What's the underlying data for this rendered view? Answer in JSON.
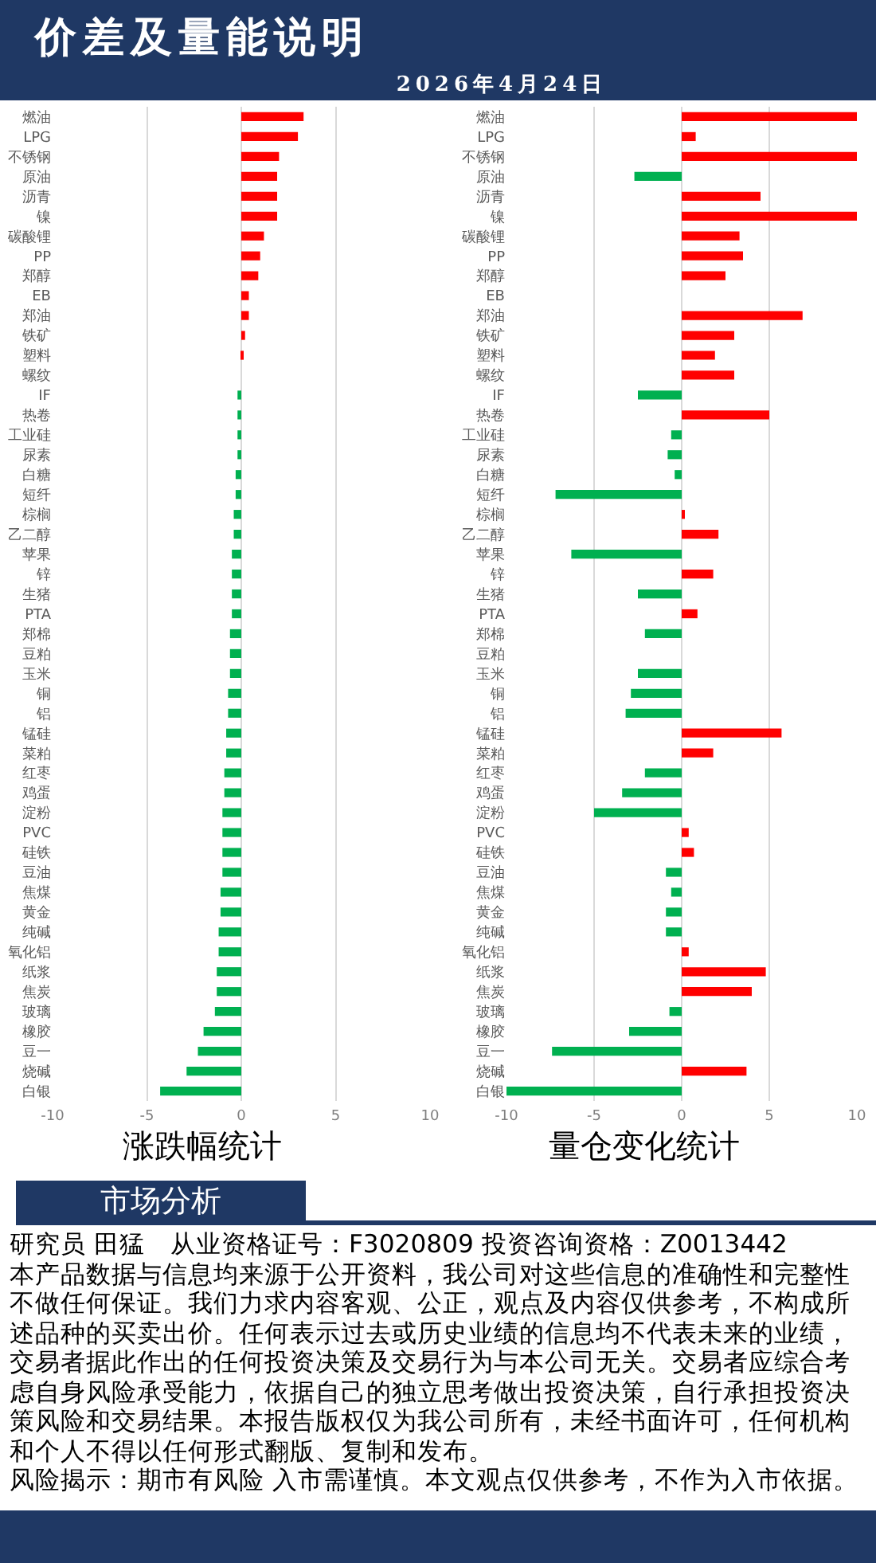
{
  "chart_data": [
    {
      "type": "bar",
      "orientation": "horizontal",
      "title": "涨跌幅统计",
      "annotations": [
        "价差及量能说明",
        "2026年4月24日"
      ],
      "categories": [
        "燃油",
        "LPG",
        "不锈钢",
        "原油",
        "沥青",
        "镍",
        "碳酸锂",
        "PP",
        "郑醇",
        "EB",
        "郑油",
        "铁矿",
        "塑料",
        "螺纹",
        "IF",
        "热卷",
        "工业硅",
        "尿素",
        "白糖",
        "短纤",
        "棕榈",
        "乙二醇",
        "苹果",
        "锌",
        "生猪",
        "PTA",
        "郑棉",
        "豆粕",
        "玉米",
        "铜",
        "铝",
        "锰硅",
        "菜粕",
        "红枣",
        "鸡蛋",
        "淀粉",
        "PVC",
        "硅铁",
        "豆油",
        "焦煤",
        "黄金",
        "纯碱",
        "氧化铝",
        "纸浆",
        "焦炭",
        "玻璃",
        "橡胶",
        "豆一",
        "烧碱",
        "白银"
      ],
      "values": [
        3.3,
        3.0,
        2.0,
        1.9,
        1.9,
        1.9,
        1.2,
        1.0,
        0.9,
        0.4,
        0.4,
        0.2,
        0.1,
        0,
        -0.2,
        -0.2,
        -0.2,
        -0.2,
        -0.3,
        -0.3,
        -0.4,
        -0.4,
        -0.5,
        -0.5,
        -0.5,
        -0.5,
        -0.6,
        -0.6,
        -0.6,
        -0.7,
        -0.7,
        -0.8,
        -0.8,
        -0.9,
        -0.9,
        -1.0,
        -1.0,
        -1.0,
        -1.0,
        -1.1,
        -1.1,
        -1.2,
        -1.2,
        -1.3,
        -1.3,
        -1.4,
        -2.0,
        -2.3,
        -2.9,
        -4.3
      ],
      "colors": [
        "#ff0000",
        "#ff0000",
        "#ff0000",
        "#ff0000",
        "#ff0000",
        "#ff0000",
        "#ff0000",
        "#ff0000",
        "#ff0000",
        "#ff0000",
        "#ff0000",
        "#ff0000",
        "#ff0000",
        "#ff0000",
        "#00b050",
        "#00b050",
        "#00b050",
        "#00b050",
        "#00b050",
        "#00b050",
        "#00b050",
        "#00b050",
        "#00b050",
        "#00b050",
        "#00b050",
        "#00b050",
        "#00b050",
        "#00b050",
        "#00b050",
        "#00b050",
        "#00b050",
        "#00b050",
        "#00b050",
        "#00b050",
        "#00b050",
        "#00b050",
        "#00b050",
        "#00b050",
        "#00b050",
        "#00b050",
        "#00b050",
        "#00b050",
        "#00b050",
        "#00b050",
        "#00b050",
        "#00b050",
        "#00b050",
        "#00b050",
        "#00b050",
        "#00b050"
      ],
      "xlim": [
        -10,
        10
      ],
      "xticks": [
        -10,
        -5,
        0,
        5,
        10
      ],
      "grid": "x"
    },
    {
      "type": "bar",
      "orientation": "horizontal",
      "title": "量仓变化统计",
      "annotations": [
        "市场分析",
        "研究员 田猛　从业资格证号：F3020809 投资咨询资格：Z0013442",
        "本产品数据与信息均来源于公开资料，我公司对这些信息的准确性和完整性不做任何保证。我们力求内容客观、公正，观点及内容仅供参考，不构成所述品种的买卖出价。任何表示过去或历史业绩的信息均不代表未来的业绩，交易者据此作出的任何投资决策及交易行为与本公司无关。交易者应综合考虑自身风险承受能力，依据自己的独立思考做出投资决策，自行承担投资决策风险和交易结果。本报告版权仅为我公司所有，未经书面许可，任何机构和个人不得以任何形式翻版、复制和发布。",
        "风险揭示：期市有风险 入市需谨慎。本文观点仅供参考，不作为入市依据。"
      ],
      "categories": [
        "燃油",
        "LPG",
        "不锈钢",
        "原油",
        "沥青",
        "镍",
        "碳酸锂",
        "PP",
        "郑醇",
        "EB",
        "郑油",
        "铁矿",
        "塑料",
        "螺纹",
        "IF",
        "热卷",
        "工业硅",
        "尿素",
        "白糖",
        "短纤",
        "棕榈",
        "乙二醇",
        "苹果",
        "锌",
        "生猪",
        "PTA",
        "郑棉",
        "豆粕",
        "玉米",
        "铜",
        "铝",
        "锰硅",
        "菜粕",
        "红枣",
        "鸡蛋",
        "淀粉",
        "PVC",
        "硅铁",
        "豆油",
        "焦煤",
        "黄金",
        "纯碱",
        "氧化铝",
        "纸浆",
        "焦炭",
        "玻璃",
        "橡胶",
        "豆一",
        "烧碱",
        "白银"
      ],
      "values": [
        10,
        0.8,
        10,
        -2.7,
        4.5,
        10,
        3.3,
        3.5,
        2.5,
        0,
        6.9,
        3.0,
        1.9,
        3.0,
        -2.5,
        5.0,
        -0.6,
        -0.8,
        -0.4,
        -7.2,
        0.1,
        2.1,
        -6.3,
        1.8,
        -2.5,
        0.9,
        -2.1,
        0,
        -2.5,
        -2.9,
        -3.2,
        5.7,
        1.8,
        -2.1,
        -3.4,
        -5.0,
        0.4,
        0.7,
        -0.9,
        -0.6,
        -0.9,
        -0.9,
        0.4,
        4.8,
        4.0,
        -0.7,
        -3.0,
        -7.4,
        3.7,
        -10
      ],
      "colors": [
        "#ff0000",
        "#ff0000",
        "#ff0000",
        "#00b050",
        "#ff0000",
        "#ff0000",
        "#ff0000",
        "#ff0000",
        "#ff0000",
        "#ff0000",
        "#ff0000",
        "#ff0000",
        "#ff0000",
        "#ff0000",
        "#00b050",
        "#ff0000",
        "#00b050",
        "#00b050",
        "#00b050",
        "#00b050",
        "#ff0000",
        "#ff0000",
        "#00b050",
        "#ff0000",
        "#00b050",
        "#ff0000",
        "#00b050",
        "#ff0000",
        "#00b050",
        "#00b050",
        "#00b050",
        "#ff0000",
        "#ff0000",
        "#00b050",
        "#00b050",
        "#00b050",
        "#ff0000",
        "#ff0000",
        "#00b050",
        "#00b050",
        "#00b050",
        "#00b050",
        "#ff0000",
        "#ff0000",
        "#ff0000",
        "#00b050",
        "#00b050",
        "#00b050",
        "#ff0000",
        "#00b050"
      ],
      "xlim": [
        -10,
        10
      ],
      "xticks": [
        -10,
        -5,
        0,
        5,
        10
      ],
      "grid": "x"
    }
  ]
}
